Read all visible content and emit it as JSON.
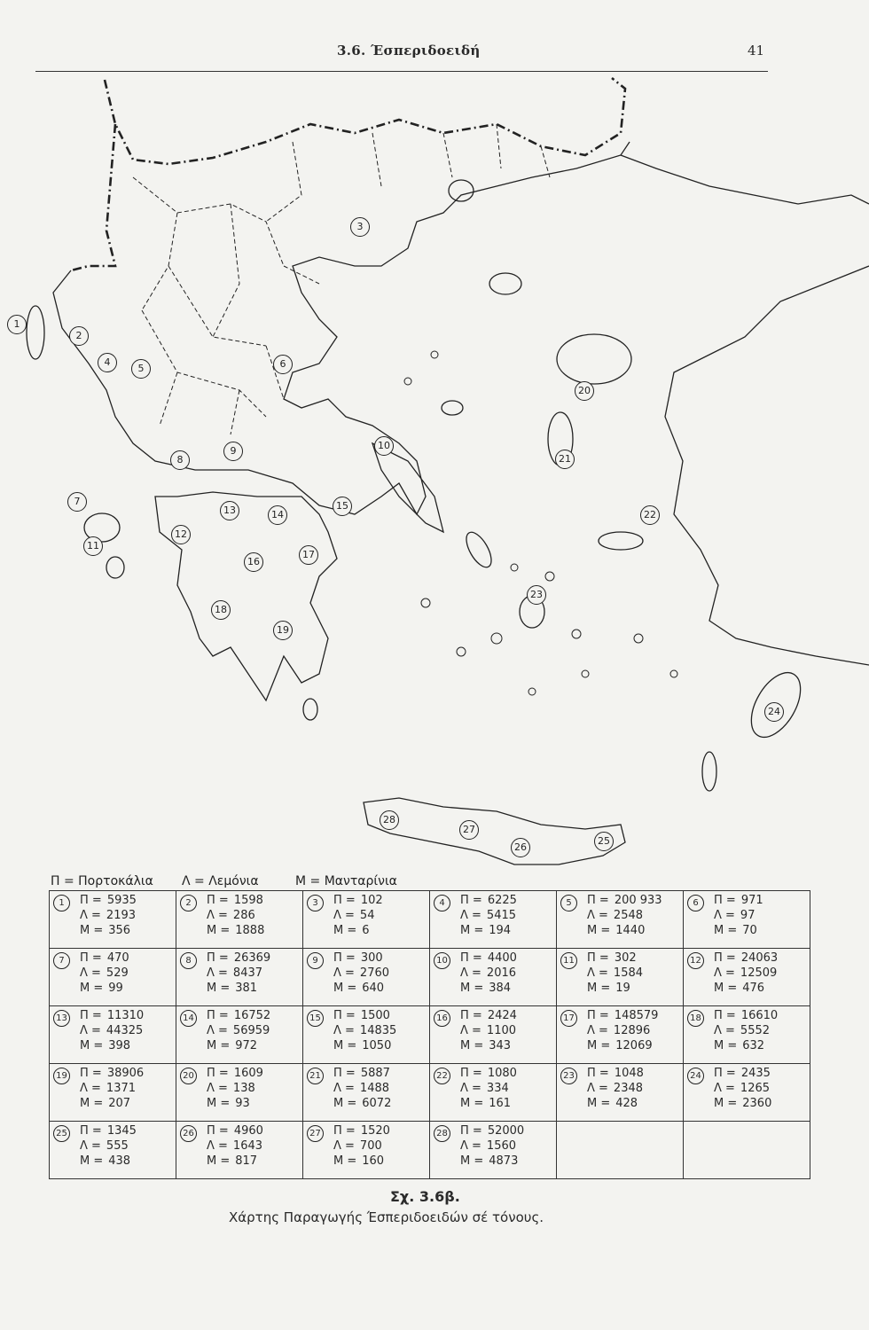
{
  "header": {
    "section_title": "3.6. Έσπεριδοειδή",
    "page_number": "41"
  },
  "map": {
    "markers": [
      "1",
      "2",
      "3",
      "4",
      "5",
      "6",
      "7",
      "8",
      "9",
      "10",
      "11",
      "12",
      "13",
      "14",
      "15",
      "16",
      "17",
      "18",
      "19",
      "20",
      "21",
      "22",
      "23",
      "24",
      "25",
      "26",
      "27",
      "28"
    ]
  },
  "legend": {
    "P": "Π = Πορτοκάλια",
    "L": "Λ = Λεμόνια",
    "M": "Μ = Μανταρίνια"
  },
  "table": {
    "symbols": {
      "P": "Π =",
      "L": "Λ =",
      "M": "Μ ="
    },
    "cells": [
      {
        "n": "1",
        "P": "5935",
        "L": "2193",
        "M": "356"
      },
      {
        "n": "2",
        "P": "1598",
        "L": "286",
        "M": "1888"
      },
      {
        "n": "3",
        "P": "102",
        "L": "54",
        "M": "6"
      },
      {
        "n": "4",
        "P": "6225",
        "L": "5415",
        "M": "194"
      },
      {
        "n": "5",
        "P": "200 933",
        "L": "2548",
        "M": "1440"
      },
      {
        "n": "6",
        "P": "971",
        "L": "97",
        "M": "70"
      },
      {
        "n": "7",
        "P": "470",
        "L": "529",
        "M": "99"
      },
      {
        "n": "8",
        "P": "26369",
        "L": "8437",
        "M": "381"
      },
      {
        "n": "9",
        "P": "300",
        "L": "2760",
        "M": "640"
      },
      {
        "n": "10",
        "P": "4400",
        "L": "2016",
        "M": "384"
      },
      {
        "n": "11",
        "P": "302",
        "L": "1584",
        "M": "19"
      },
      {
        "n": "12",
        "P": "24063",
        "L": "12509",
        "M": "476"
      },
      {
        "n": "13",
        "P": "11310",
        "L": "44325",
        "M": "398"
      },
      {
        "n": "14",
        "P": "16752",
        "L": "56959",
        "M": "972"
      },
      {
        "n": "15",
        "P": "1500",
        "L": "14835",
        "M": "1050"
      },
      {
        "n": "16",
        "P": "2424",
        "L": "1100",
        "M": "343"
      },
      {
        "n": "17",
        "P": "148579",
        "L": "12896",
        "M": "12069"
      },
      {
        "n": "18",
        "P": "16610",
        "L": "5552",
        "M": "632"
      },
      {
        "n": "19",
        "P": "38906",
        "L": "1371",
        "M": "207"
      },
      {
        "n": "20",
        "P": "1609",
        "L": "138",
        "M": "93"
      },
      {
        "n": "21",
        "P": "5887",
        "L": "1488",
        "M": "6072"
      },
      {
        "n": "22",
        "P": "1080",
        "L": "334",
        "M": "161"
      },
      {
        "n": "23",
        "P": "1048",
        "L": "2348",
        "M": "428"
      },
      {
        "n": "24",
        "P": "2435",
        "L": "1265",
        "M": "2360"
      },
      {
        "n": "25",
        "P": "1345",
        "L": "555",
        "M": "438"
      },
      {
        "n": "26",
        "P": "4960",
        "L": "1643",
        "M": "817"
      },
      {
        "n": "27",
        "P": "1520",
        "L": "700",
        "M": "160"
      },
      {
        "n": "28",
        "P": "52000",
        "L": "1560",
        "M": "4873"
      },
      null,
      null
    ]
  },
  "caption": {
    "figure_label": "Σχ. 3.6β.",
    "text": "Χάρτης Παραγωγής Έσπεριδοειδών σέ τόνους."
  }
}
